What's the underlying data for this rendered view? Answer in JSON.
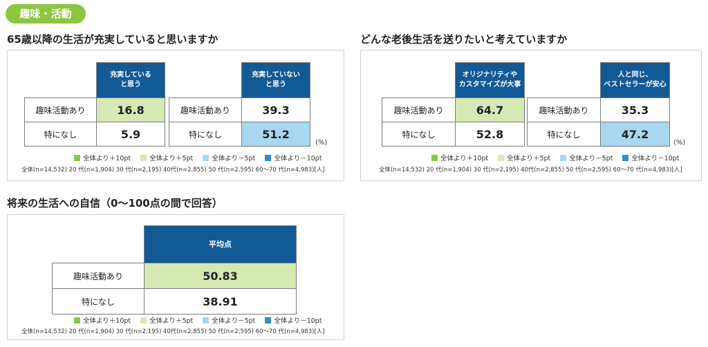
{
  "badge": "趣味・活動",
  "colors": {
    "badge": "#8cc63f",
    "header": "#125a96",
    "plus10": "#8cc63f",
    "plus5": "#d6e8b4",
    "minus5": "#a9d6f0",
    "minus10": "#2f8fc8"
  },
  "legend": {
    "plus10": "全体より＋10pt",
    "plus5": "全体より＋5pt",
    "minus5": "全体より－5pt",
    "minus10": "全体より－10pt"
  },
  "note": "全体(n=14,532) 20 代(n=1,904) 30 代(n=2,195) 40代(n=2,855) 50 代(n=2,595) 60〜70 代(n=4,983)[人]",
  "pct_unit": "(%)",
  "q1": {
    "title": "65歳以降の生活が充実していると思いますか",
    "left": {
      "head_line1": "充実している",
      "head_line2": "と思う",
      "rows": [
        {
          "label": "趣味活動あり",
          "value": "16.8"
        },
        {
          "label": "特になし",
          "value": "5.9"
        }
      ]
    },
    "right": {
      "head_line1": "充実していない",
      "head_line2": "と思う",
      "rows": [
        {
          "label": "趣味活動あり",
          "value": "39.3"
        },
        {
          "label": "特になし",
          "value": "51.2"
        }
      ]
    }
  },
  "q2": {
    "title": "どんな老後生活を送りたいと考えていますか",
    "left": {
      "head_line1": "オリジナリティや",
      "head_line2": "カスタマイズが大事",
      "rows": [
        {
          "label": "趣味活動あり",
          "value": "64.7"
        },
        {
          "label": "特になし",
          "value": "52.8"
        }
      ]
    },
    "right": {
      "head_line1": "人と同じ、",
      "head_line2": "ベストセラーが安心",
      "rows": [
        {
          "label": "趣味活動あり",
          "value": "35.3"
        },
        {
          "label": "特になし",
          "value": "47.2"
        }
      ]
    }
  },
  "q3": {
    "title": "将来の生活への自信（0〜100点の間で回答）",
    "head": "平均点",
    "rows": [
      {
        "label": "趣味活動あり",
        "value": "50.83"
      },
      {
        "label": "特になし",
        "value": "38.91"
      }
    ]
  }
}
